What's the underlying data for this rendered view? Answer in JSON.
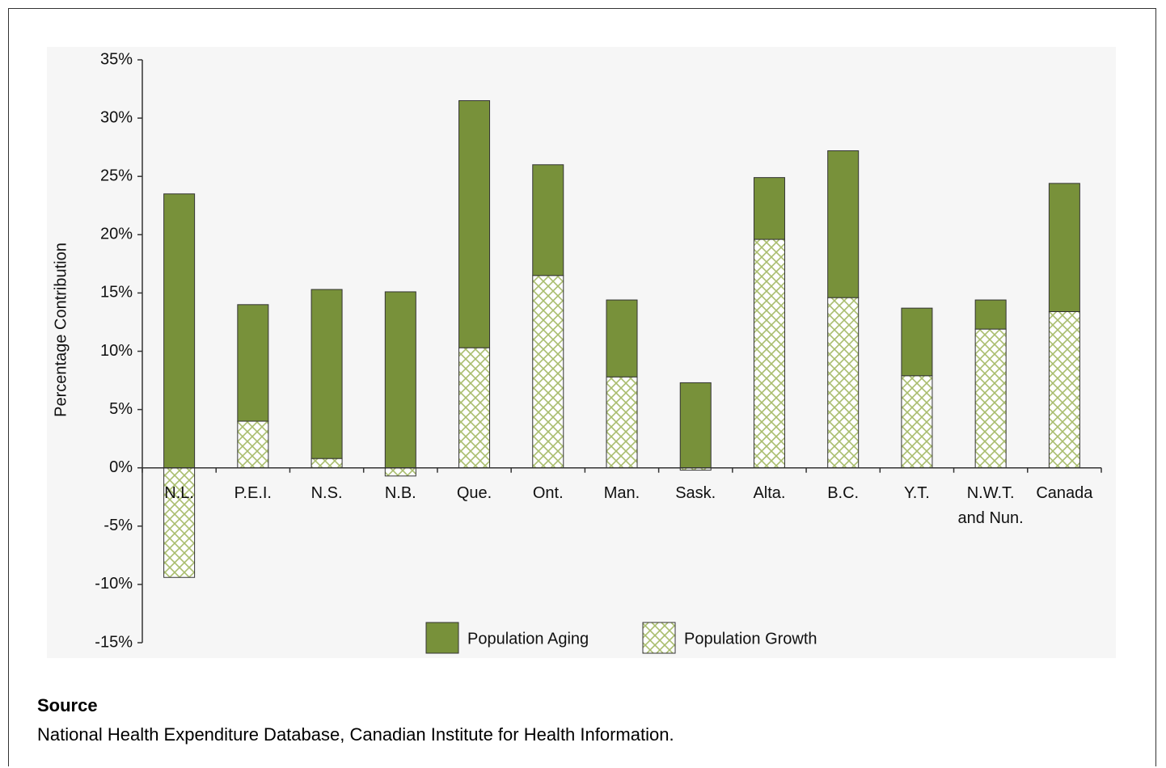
{
  "chart_data": {
    "type": "bar",
    "stacked": true,
    "y_label": "Percentage Contribution",
    "categories": [
      "N.L.",
      "P.E.I.",
      "N.S.",
      "N.B.",
      "Que.",
      "Ont.",
      "Man.",
      "Sask.",
      "Alta.",
      "B.C.",
      "Y.T.",
      "N.W.T. and Nun.",
      "Canada"
    ],
    "series": [
      {
        "name": "Population Aging",
        "color": "#78913a",
        "values": [
          23.5,
          10.0,
          14.5,
          15.1,
          21.2,
          9.5,
          6.6,
          7.3,
          5.3,
          12.6,
          5.8,
          2.5,
          11.0
        ]
      },
      {
        "name": "Population Growth",
        "color": "#a9bd6e",
        "pattern": "crosshatch",
        "values": [
          -9.4,
          4.0,
          0.8,
          -0.7,
          10.3,
          16.5,
          7.8,
          -0.2,
          19.6,
          14.6,
          7.9,
          11.9,
          13.4
        ]
      }
    ],
    "ylim": [
      -15,
      35
    ],
    "yticks": [
      {
        "value": -15,
        "label": "-15%"
      },
      {
        "value": -10,
        "label": "-10%"
      },
      {
        "value": -5,
        "label": "-5%"
      },
      {
        "value": 0,
        "label": "0%"
      },
      {
        "value": 5,
        "label": "5%"
      },
      {
        "value": 10,
        "label": "10%"
      },
      {
        "value": 15,
        "label": "15%"
      },
      {
        "value": 20,
        "label": "20%"
      },
      {
        "value": 25,
        "label": "25%"
      },
      {
        "value": 30,
        "label": "30%"
      },
      {
        "value": 35,
        "label": "35%"
      }
    ],
    "legend": "bottom",
    "source_heading": "Source",
    "source": "National Health Expenditure Database, Canadian Institute for Health Information."
  }
}
